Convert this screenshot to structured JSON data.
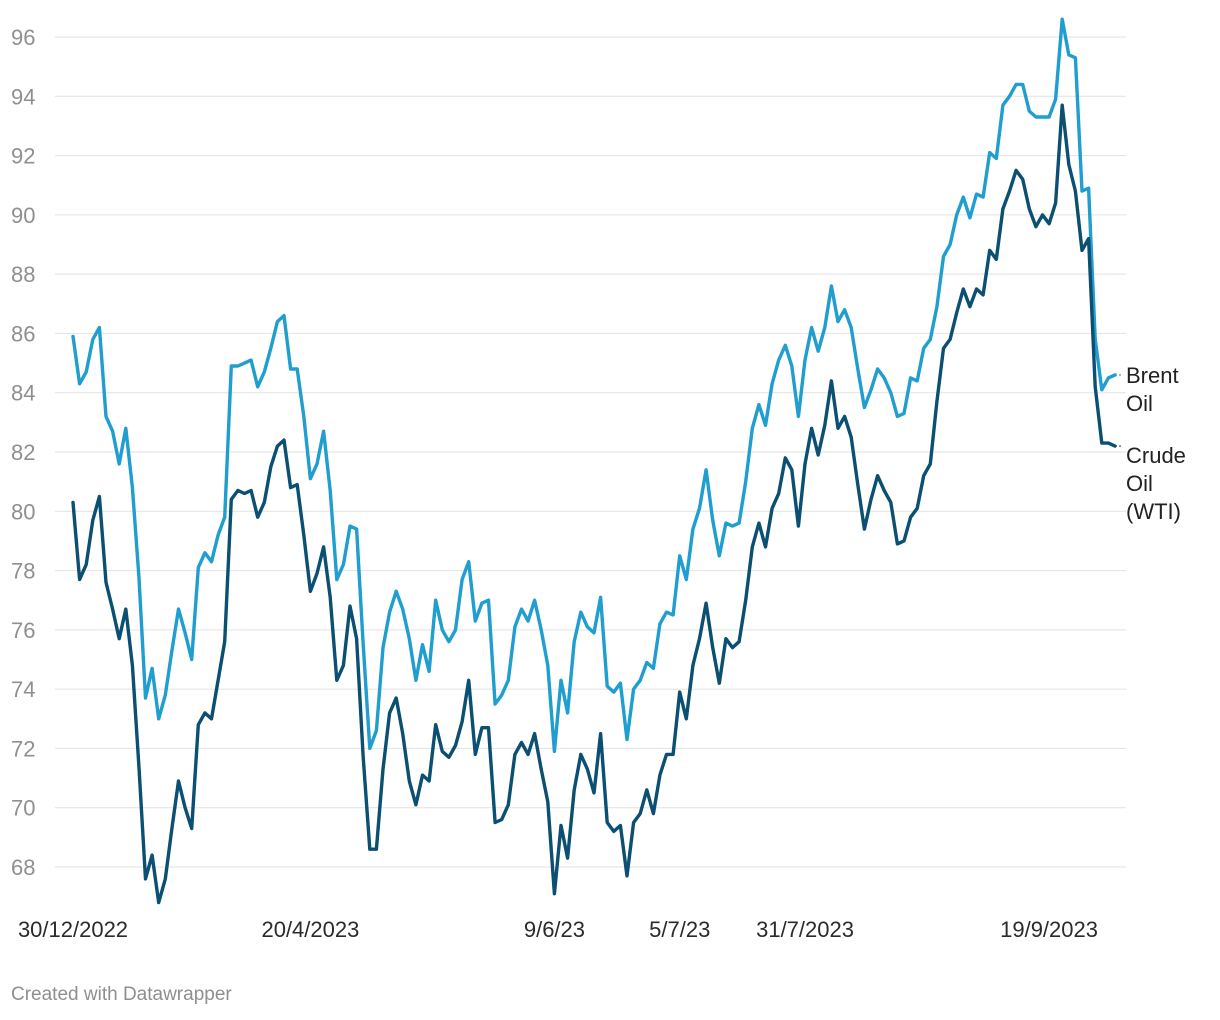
{
  "chart_data": {
    "type": "line",
    "title": "",
    "xlabel": "",
    "ylabel": "",
    "ylim": [
      67,
      96.7
    ],
    "yticks": [
      68,
      70,
      72,
      74,
      76,
      78,
      80,
      82,
      84,
      86,
      88,
      90,
      92,
      94,
      96
    ],
    "xticks": [
      {
        "index": 0,
        "label": "30/12/2022"
      },
      {
        "index": 36,
        "label": "20/4/2023"
      },
      {
        "index": 73,
        "label": "9/6/23"
      },
      {
        "index": 92,
        "label": "5/7/23"
      },
      {
        "index": 111,
        "label": "31/7/2023"
      },
      {
        "index": 148,
        "label": "19/9/2023"
      }
    ],
    "grid": true,
    "series": [
      {
        "name": "Brent Oil",
        "label_lines": [
          "Brent",
          "Oil"
        ],
        "color": "#1f9ecf",
        "values": [
          85.9,
          84.3,
          84.7,
          85.8,
          86.2,
          83.2,
          82.7,
          81.6,
          82.8,
          80.8,
          77.8,
          73.7,
          74.7,
          73.0,
          73.8,
          75.3,
          76.7,
          75.9,
          75.0,
          78.1,
          78.6,
          78.3,
          79.2,
          79.8,
          84.9,
          84.9,
          85.0,
          85.1,
          84.2,
          84.7,
          85.5,
          86.4,
          86.6,
          84.8,
          84.8,
          83.2,
          81.1,
          81.6,
          82.7,
          80.7,
          77.7,
          78.2,
          79.5,
          79.4,
          75.5,
          72.0,
          72.6,
          75.4,
          76.6,
          77.3,
          76.7,
          75.7,
          74.3,
          75.5,
          74.6,
          77.0,
          76.0,
          75.6,
          76.0,
          77.7,
          78.3,
          76.3,
          76.9,
          77.0,
          73.5,
          73.8,
          74.3,
          76.1,
          76.7,
          76.3,
          77.0,
          76.0,
          74.8,
          71.9,
          74.3,
          73.2,
          75.6,
          76.6,
          76.1,
          75.9,
          77.1,
          74.1,
          73.9,
          74.2,
          72.3,
          74.0,
          74.3,
          74.9,
          74.7,
          76.2,
          76.6,
          76.5,
          78.5,
          77.7,
          79.4,
          80.1,
          81.4,
          79.7,
          78.5,
          79.6,
          79.5,
          79.6,
          81.0,
          82.8,
          83.6,
          82.9,
          84.3,
          85.1,
          85.6,
          84.9,
          83.2,
          85.1,
          86.2,
          85.4,
          86.2,
          87.6,
          86.4,
          86.8,
          86.2,
          84.8,
          83.5,
          84.1,
          84.8,
          84.5,
          84.0,
          83.2,
          83.3,
          84.5,
          84.4,
          85.5,
          85.8,
          86.9,
          88.6,
          89.0,
          90.0,
          90.6,
          89.9,
          90.7,
          90.6,
          92.1,
          91.9,
          93.7,
          94.0,
          94.4,
          94.4,
          93.5,
          93.3,
          93.3,
          93.3,
          93.9,
          96.6,
          95.4,
          95.3,
          90.8,
          90.9,
          85.8,
          84.1,
          84.5,
          84.6
        ]
      },
      {
        "name": "Crude Oil (WTI)",
        "label_lines": [
          "Crude",
          "Oil",
          "(WTI)"
        ],
        "color": "#0b4f72",
        "values": [
          80.3,
          77.7,
          78.2,
          79.7,
          80.5,
          77.6,
          76.7,
          75.7,
          76.7,
          74.8,
          71.4,
          67.6,
          68.4,
          66.8,
          67.6,
          69.3,
          70.9,
          70.0,
          69.3,
          72.8,
          73.2,
          73.0,
          74.3,
          75.6,
          80.4,
          80.7,
          80.6,
          80.7,
          79.8,
          80.3,
          81.5,
          82.2,
          82.4,
          80.8,
          80.9,
          79.2,
          77.3,
          77.9,
          78.8,
          77.1,
          74.3,
          74.8,
          76.8,
          75.7,
          71.7,
          68.6,
          68.6,
          71.3,
          73.2,
          73.7,
          72.5,
          70.9,
          70.1,
          71.1,
          70.9,
          72.8,
          71.9,
          71.7,
          72.1,
          72.9,
          74.3,
          71.8,
          72.7,
          72.7,
          69.5,
          69.6,
          70.1,
          71.8,
          72.2,
          71.8,
          72.5,
          71.3,
          70.2,
          67.1,
          69.4,
          68.3,
          70.6,
          71.8,
          71.3,
          70.5,
          72.5,
          69.5,
          69.2,
          69.4,
          67.7,
          69.5,
          69.8,
          70.6,
          69.8,
          71.1,
          71.8,
          71.8,
          73.9,
          73.0,
          74.8,
          75.7,
          76.9,
          75.4,
          74.2,
          75.7,
          75.4,
          75.6,
          77.0,
          78.8,
          79.6,
          78.8,
          80.1,
          80.6,
          81.8,
          81.4,
          79.5,
          81.6,
          82.8,
          81.9,
          82.9,
          84.4,
          82.8,
          83.2,
          82.5,
          80.9,
          79.4,
          80.4,
          81.2,
          80.7,
          80.3,
          78.9,
          79.0,
          79.8,
          80.1,
          81.2,
          81.6,
          83.7,
          85.5,
          85.8,
          86.7,
          87.5,
          86.9,
          87.5,
          87.3,
          88.8,
          88.5,
          90.2,
          90.8,
          91.5,
          91.2,
          90.2,
          89.6,
          90.0,
          89.7,
          90.4,
          93.7,
          91.7,
          90.8,
          88.8,
          89.2,
          84.2,
          82.3,
          82.3,
          82.2
        ]
      }
    ]
  },
  "footer": {
    "credit": "Created with Datawrapper"
  }
}
